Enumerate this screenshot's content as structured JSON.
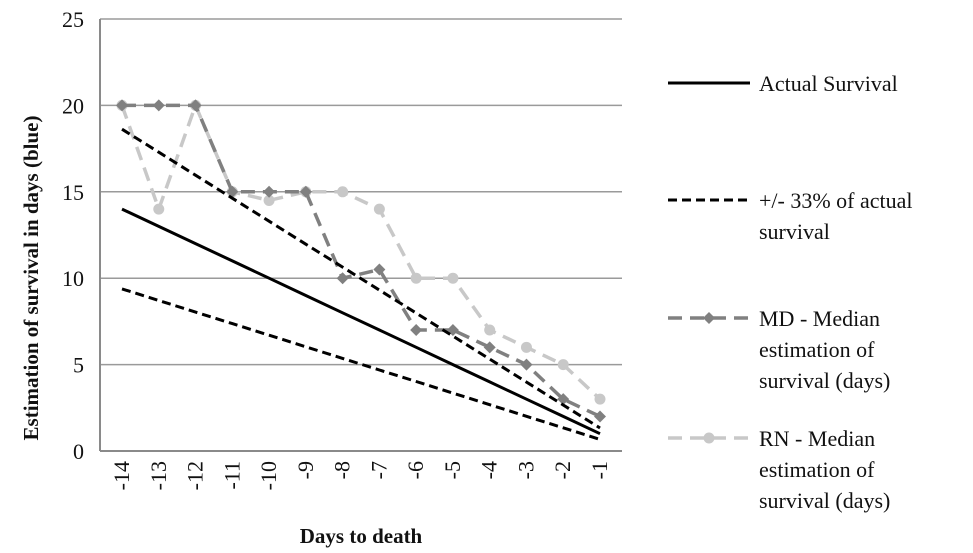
{
  "chart_data": {
    "type": "line",
    "xlabel": "Days to death",
    "ylabel": "Estimation of survival in days (blue)",
    "x": [
      -14,
      -13,
      -12,
      -11,
      -10,
      -9,
      -8,
      -7,
      -6,
      -5,
      -4,
      -3,
      -2,
      -1
    ],
    "x_tick_labels": [
      "-14",
      "-13",
      "-12",
      "-11",
      "-10",
      "-9",
      "-8",
      "-7",
      "-6",
      "-5",
      "-4",
      "-3",
      "-2",
      "-1"
    ],
    "ylim": [
      0,
      25
    ],
    "y_ticks": [
      0,
      5,
      10,
      15,
      20,
      25
    ],
    "y_tick_labels": [
      "0",
      "5",
      "10",
      "15",
      "20",
      "25"
    ],
    "grid": "horizontal",
    "legend_position": "right",
    "series": [
      {
        "key": "actual",
        "name": "Actual Survival",
        "legend_lines": [
          "Actual Survival"
        ],
        "style": "solid",
        "color": "#000000",
        "marker": "none",
        "values": [
          14,
          13,
          12,
          11,
          10,
          9,
          8,
          7,
          6,
          5,
          4,
          3,
          2,
          1
        ]
      },
      {
        "key": "upper",
        "name": "+/- 33% of actual survival",
        "legend_lines": [
          "+/- 33% of actual",
          "survival"
        ],
        "style": "dashed",
        "color": "#000000",
        "marker": "none",
        "values": [
          18.62,
          17.29,
          15.96,
          14.63,
          13.3,
          11.97,
          10.64,
          9.31,
          7.98,
          6.65,
          5.32,
          3.99,
          2.66,
          1.33
        ]
      },
      {
        "key": "lower",
        "name": "",
        "legend_lines": [],
        "style": "dashed",
        "color": "#000000",
        "marker": "none",
        "values": [
          9.38,
          8.71,
          8.04,
          7.37,
          6.7,
          6.03,
          5.36,
          4.69,
          4.02,
          3.35,
          2.68,
          2.01,
          1.34,
          0.67
        ]
      },
      {
        "key": "md",
        "name": "MD - Median estimation of survival (days)",
        "legend_lines": [
          "MD - Median",
          "estimation of",
          "survival (days)"
        ],
        "style": "dashed",
        "color": "#808080",
        "marker": "diamond",
        "values": [
          20,
          20,
          20,
          15,
          15,
          15,
          10,
          10.5,
          7,
          7,
          6,
          5,
          3,
          2
        ]
      },
      {
        "key": "rn",
        "name": "RN - Median estimation of survival (days)",
        "legend_lines": [
          "RN - Median",
          "estimation of",
          "survival (days)"
        ],
        "style": "dashed",
        "color": "#c8c8c8",
        "marker": "circle",
        "values": [
          20,
          14,
          20,
          15,
          14.5,
          15,
          15,
          14,
          10,
          10,
          7,
          6,
          5,
          3
        ]
      }
    ]
  }
}
